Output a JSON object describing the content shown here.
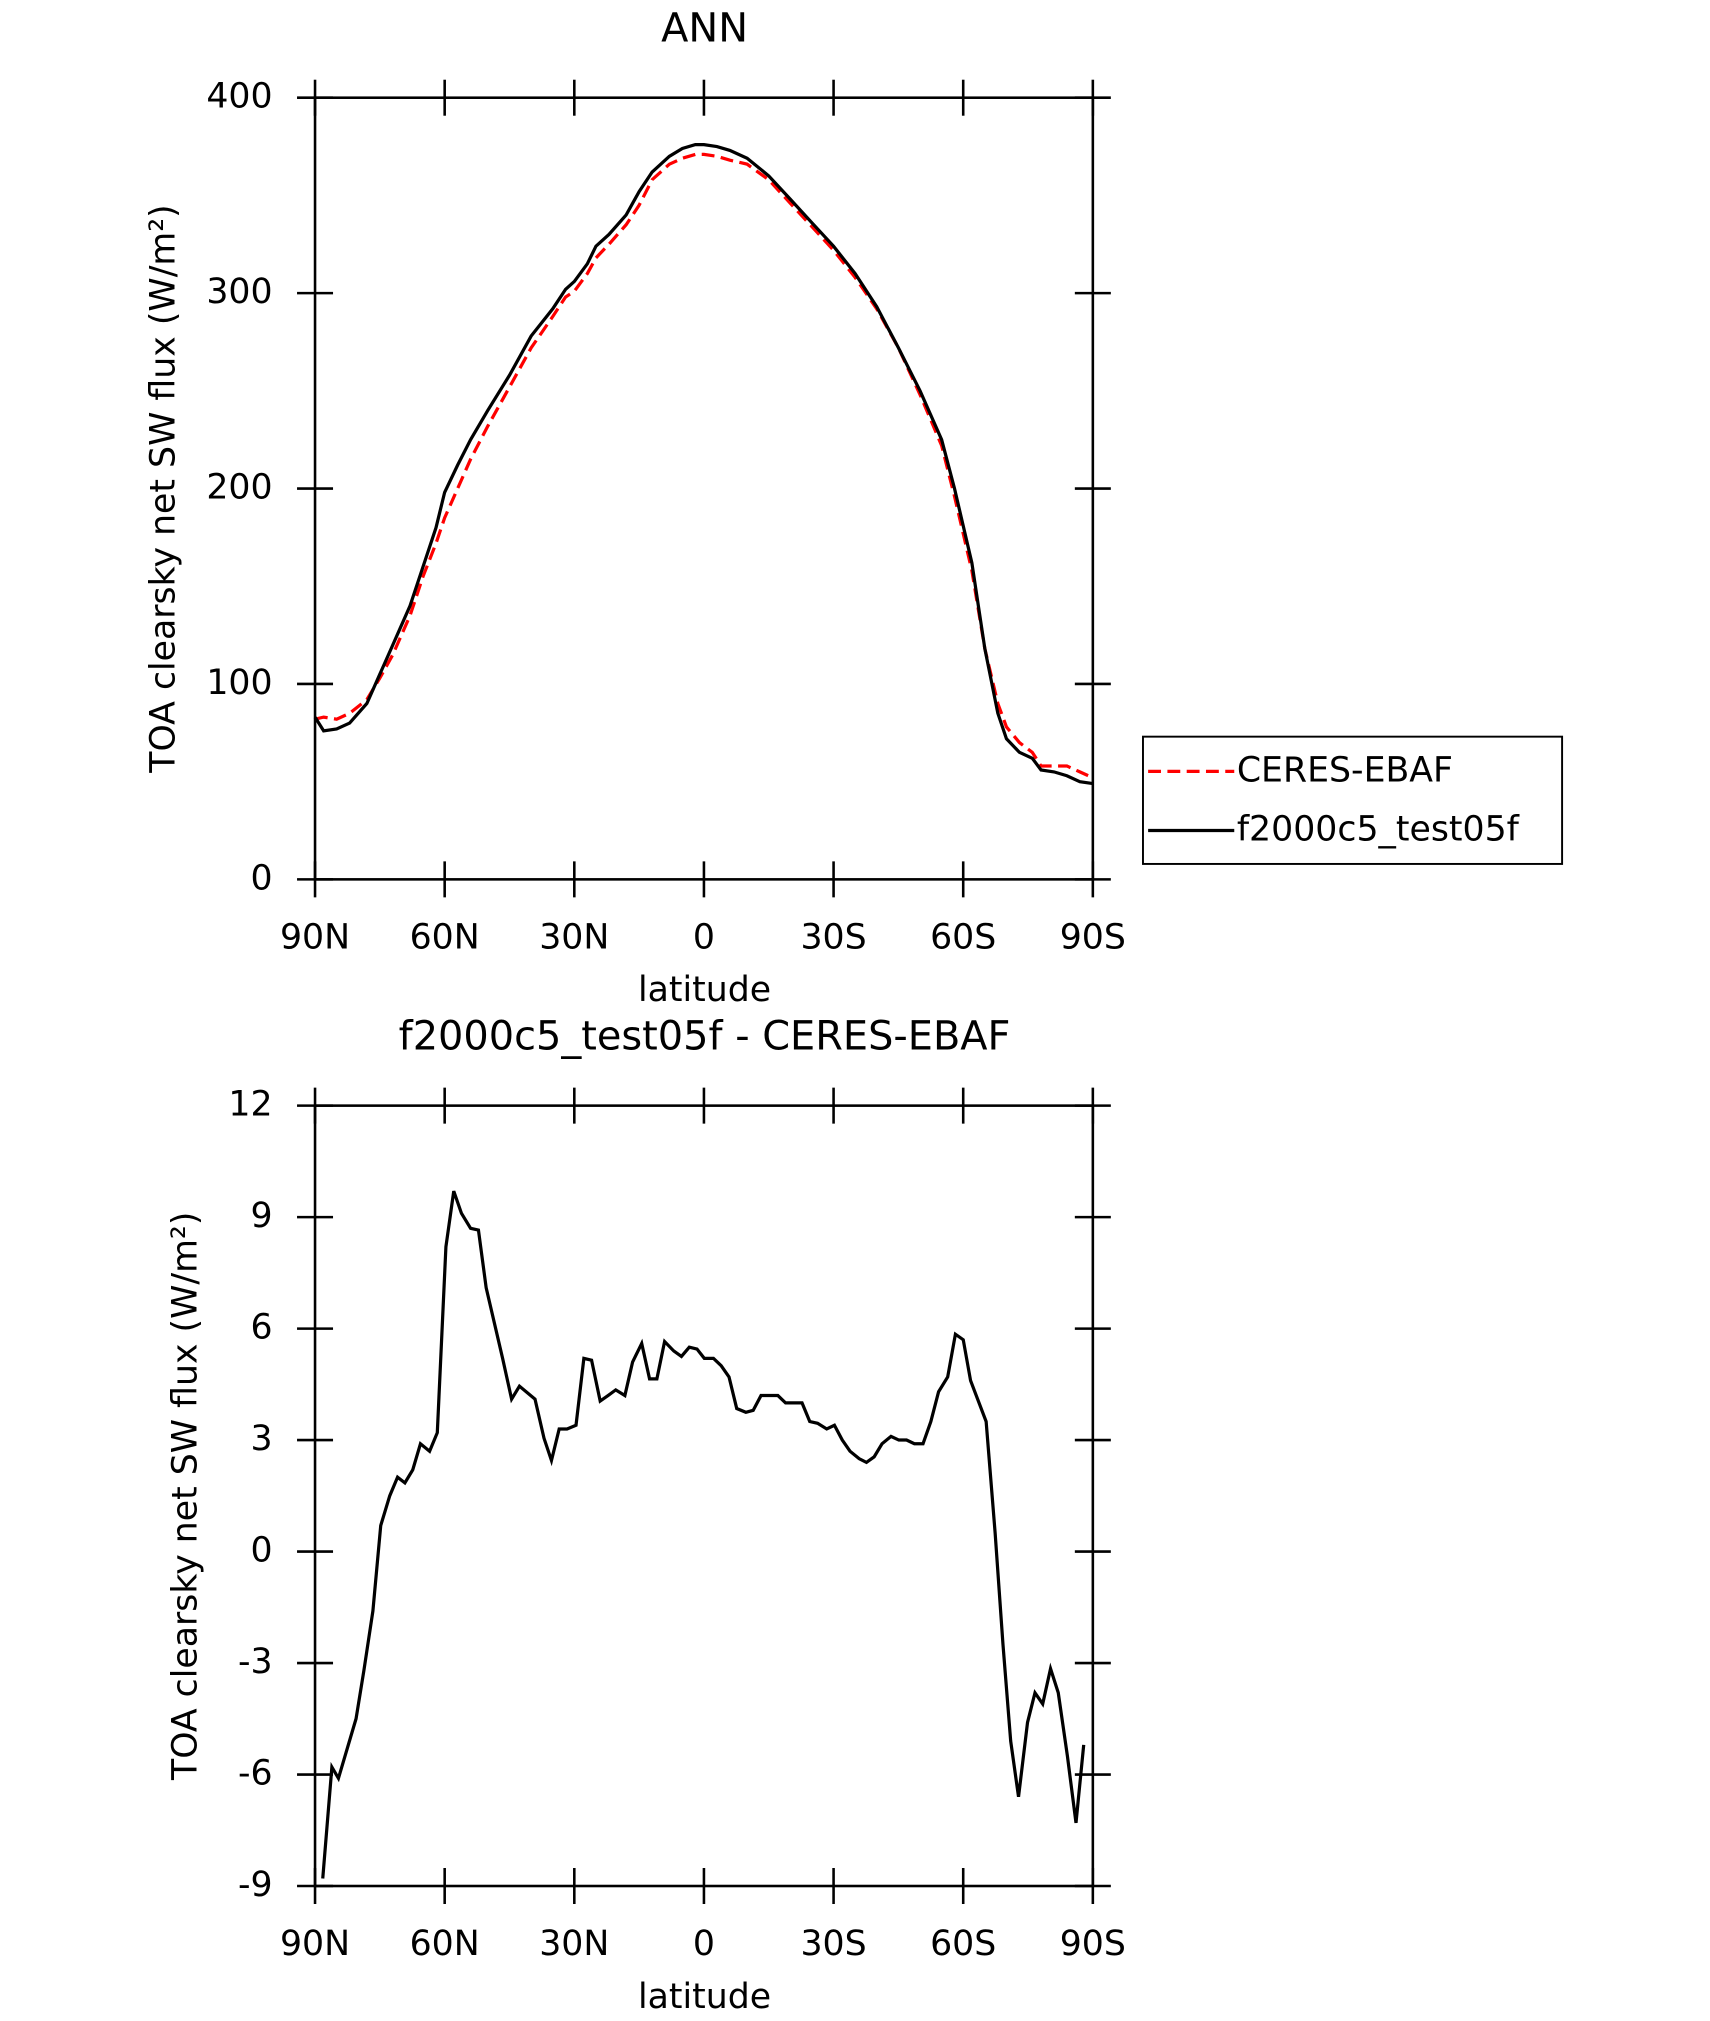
{
  "chart_data": [
    {
      "type": "line",
      "title": "ANN",
      "xlabel": "latitude",
      "ylabel": "TOA clearsky net SW flux (W/m²)",
      "xlim": [
        90,
        -90
      ],
      "xticks": [
        {
          "value": 90,
          "label": "90N"
        },
        {
          "value": 60,
          "label": "60N"
        },
        {
          "value": 30,
          "label": "30N"
        },
        0,
        {
          "value": -30,
          "label": "30S"
        },
        {
          "value": -60,
          "label": "60S"
        },
        {
          "value": -90,
          "label": "90S"
        }
      ],
      "ylim": [
        0,
        400
      ],
      "yticks": [
        0,
        100,
        200,
        300,
        400
      ],
      "legend": "right",
      "x": [
        90,
        88,
        85,
        82,
        78,
        75,
        72,
        68,
        65,
        62,
        60,
        57,
        54,
        50,
        45,
        40,
        35,
        32,
        30,
        27,
        25,
        22,
        18,
        15,
        12,
        8,
        5,
        2,
        0,
        -3,
        -6,
        -10,
        -15,
        -20,
        -25,
        -30,
        -35,
        -40,
        -45,
        -50,
        -55,
        -58,
        -62,
        -65,
        -68,
        -70,
        -73,
        -76,
        -78,
        -81,
        -84,
        -87,
        -90
      ],
      "series": [
        {
          "name": "CERES-EBAF",
          "color": "#ff0000",
          "linestyle": "dashed",
          "values": [
            82,
            83,
            82,
            85,
            92,
            103,
            115,
            135,
            155,
            172,
            185,
            200,
            215,
            232,
            252,
            272,
            288,
            298,
            301,
            310,
            318,
            325,
            335,
            345,
            358,
            366,
            369,
            371,
            371,
            370,
            368,
            366,
            358,
            346,
            334,
            322,
            308,
            292,
            272,
            248,
            222,
            196,
            158,
            118,
            90,
            78,
            70,
            65,
            58,
            58,
            58,
            55,
            52
          ]
        },
        {
          "name": "f2000c5_test05f",
          "color": "#000000",
          "linestyle": "solid",
          "values": [
            83,
            76,
            77,
            80,
            90,
            105,
            120,
            140,
            160,
            180,
            198,
            212,
            225,
            240,
            258,
            278,
            292,
            302,
            306,
            315,
            324,
            330,
            340,
            352,
            362,
            370,
            374,
            376,
            376,
            375,
            373,
            369,
            360,
            348,
            336,
            324,
            310,
            293,
            272,
            250,
            225,
            200,
            162,
            118,
            85,
            72,
            65,
            62,
            56,
            55,
            53,
            50,
            49
          ]
        }
      ]
    },
    {
      "type": "line",
      "title": "f2000c5_test05f - CERES-EBAF",
      "xlabel": "latitude",
      "ylabel": "TOA clearsky net SW flux (W/m²)",
      "xlim": [
        90,
        -90
      ],
      "xticks": [
        {
          "value": 90,
          "label": "90N"
        },
        {
          "value": 60,
          "label": "60N"
        },
        {
          "value": 30,
          "label": "30N"
        },
        0,
        {
          "value": -30,
          "label": "30S"
        },
        {
          "value": -60,
          "label": "60S"
        },
        {
          "value": -90,
          "label": "90S"
        }
      ],
      "ylim": [
        -9,
        12
      ],
      "yticks": [
        -9,
        -6,
        -3,
        0,
        3,
        6,
        9,
        12
      ],
      "x": [
        88.2,
        86.1,
        84.6,
        80.5,
        78.7,
        76.6,
        74.8,
        72.7,
        70.9,
        69.2,
        67.4,
        65.6,
        63.5,
        61.7,
        59.7,
        57.9,
        56.1,
        54.0,
        52.2,
        50.4,
        46.6,
        44.5,
        42.7,
        39.1,
        37.0,
        35.3,
        33.5,
        31.7,
        29.6,
        27.8,
        26.0,
        24.0,
        22.2,
        20.4,
        18.3,
        16.5,
        14.4,
        12.6,
        10.9,
        9.1,
        7.0,
        5.2,
        3.4,
        1.6,
        -0.1,
        -2.2,
        -4.0,
        -5.8,
        -7.6,
        -9.7,
        -11.4,
        -13.2,
        -17.1,
        -18.9,
        -22.7,
        -24.5,
        -26.3,
        -28.4,
        -30.2,
        -32.0,
        -33.8,
        -35.9,
        -37.6,
        -39.4,
        -41.2,
        -43.3,
        -45.1,
        -46.9,
        -48.7,
        -50.7,
        -52.5,
        -54.3,
        -56.4,
        -58.2,
        -60.0,
        -61.7,
        -65.3,
        -67.4,
        -69.2,
        -71.0,
        -72.8,
        -74.9,
        -76.6,
        -78.4,
        -80.2,
        -82.0,
        -84.1,
        -86.1,
        -87.9
      ],
      "series": [
        {
          "name": "f2000c5_test05f - CERES-EBAF",
          "color": "#000000",
          "linestyle": "solid",
          "values": [
            -8.8,
            -5.8,
            -6.1,
            -4.5,
            -3.2,
            -1.6,
            0.7,
            1.5,
            2.0,
            1.85,
            2.2,
            2.9,
            2.7,
            3.2,
            8.2,
            9.7,
            9.1,
            8.7,
            8.65,
            7.1,
            5.2,
            4.1,
            4.45,
            4.1,
            3.05,
            2.45,
            3.3,
            3.3,
            3.4,
            5.2,
            5.15,
            4.05,
            4.2,
            4.35,
            4.2,
            5.1,
            5.6,
            4.65,
            4.65,
            5.65,
            5.4,
            5.25,
            5.5,
            5.45,
            5.2,
            5.2,
            5.0,
            4.7,
            3.85,
            3.75,
            3.8,
            4.2,
            4.2,
            4.0,
            4.0,
            3.5,
            3.45,
            3.3,
            3.4,
            3.0,
            2.7,
            2.5,
            2.4,
            2.55,
            2.9,
            3.1,
            3.0,
            3.0,
            2.9,
            2.9,
            3.5,
            4.3,
            4.7,
            5.85,
            5.7,
            4.6,
            3.5,
            0.5,
            -2.5,
            -5.1,
            -6.6,
            -4.6,
            -3.8,
            -4.1,
            -3.15,
            -3.8,
            -5.5,
            -7.3,
            -5.2
          ]
        }
      ]
    }
  ]
}
